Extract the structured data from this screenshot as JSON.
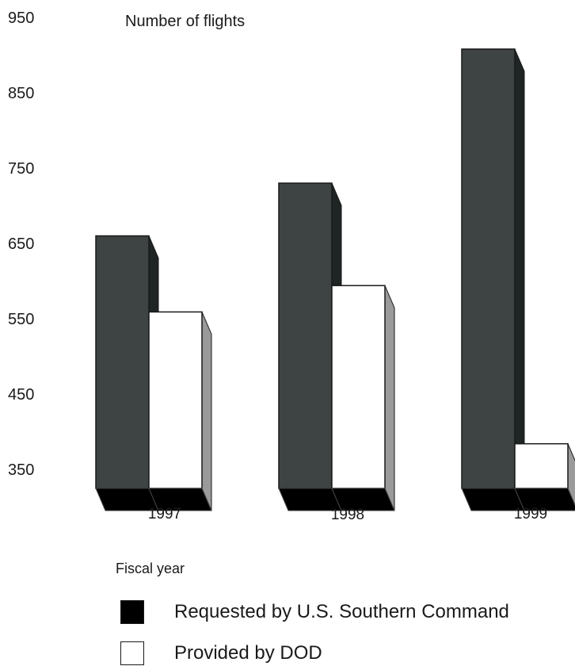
{
  "chart_data": {
    "type": "bar",
    "ylabel": "Number of flights",
    "xlabel": "Fiscal year",
    "categories": [
      "1997",
      "1998",
      "1999"
    ],
    "series": [
      {
        "name": "Requested by U.S. Southern Command",
        "values": [
          660,
          730,
          908
        ],
        "color": "#3d4443"
      },
      {
        "name": "Provided by DOD",
        "values": [
          559,
          594,
          384
        ],
        "color": "#ffffff"
      }
    ],
    "ylim": [
      330,
      950
    ],
    "yticks": [
      350,
      450,
      550,
      650,
      750,
      850,
      950
    ],
    "grid": false,
    "legend_position": "bottom"
  }
}
